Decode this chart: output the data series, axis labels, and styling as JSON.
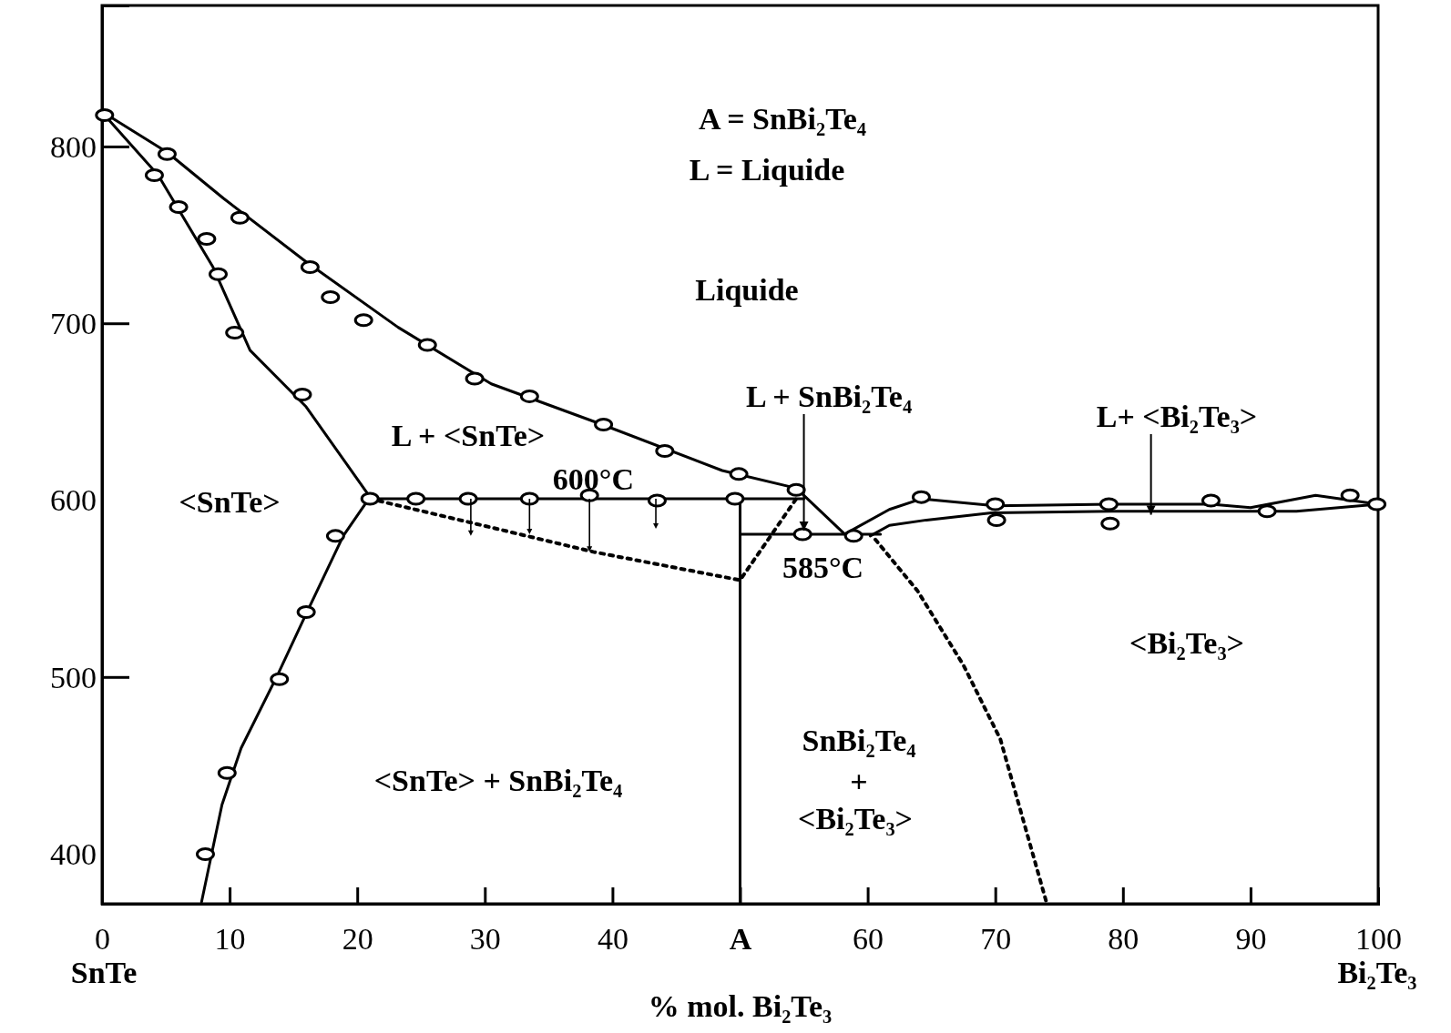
{
  "chart_data": {
    "type": "line",
    "xlabel": "% mol. Bi₂Te₃",
    "xlim": [
      0,
      100
    ],
    "ylim": [
      372,
      880
    ],
    "xticks": [
      0,
      10,
      20,
      30,
      40,
      {
        "value": 50,
        "label": "A"
      },
      60,
      70,
      80,
      90,
      100
    ],
    "yticks": [
      400,
      500,
      600,
      700,
      800
    ],
    "series": [
      {
        "color": "#000000",
        "line_style": "solid",
        "x": [
          0.2,
          5.1,
          9.5,
          16.0,
          23.2,
          30.5,
          39.2,
          48.6,
          54.4,
          58.2,
          61.7,
          64.2,
          70.0,
          79.1,
          86.9,
          90.0,
          95.1,
          100
        ],
        "values": [
          819,
          797,
          771,
          735,
          698,
          666,
          643,
          617,
          607,
          581,
          595,
          601,
          597,
          598,
          598,
          596,
          603,
          598
        ]
      },
      {
        "color": "#000000",
        "line_style": "solid",
        "x": [
          0.2,
          4.4,
          8.7,
          11.6,
          16.0,
          21.0
        ],
        "values": [
          818,
          784,
          732,
          685,
          653,
          602
        ]
      },
      {
        "color": "#000000",
        "line_style": "solid",
        "x": [
          21.0,
          18.9,
          16.0,
          13.8,
          10.9,
          9.4,
          7.8
        ],
        "values": [
          602,
          580,
          536,
          502,
          460,
          428,
          373
        ]
      },
      {
        "color": "#000000",
        "line_style": "solid",
        "x": [
          21.0,
          55.0
        ],
        "values": [
          601,
          601
        ]
      },
      {
        "color": "#000000",
        "line_style": "solid",
        "x": [
          50,
          50
        ],
        "values": [
          600,
          372
        ]
      },
      {
        "color": "#000000",
        "line_style": "solid",
        "x": [
          50,
          61
        ],
        "values": [
          581,
          581
        ]
      },
      {
        "color": "#000000",
        "line_style": "solid",
        "x": [
          60.2,
          61.7,
          64.6,
          69.7,
          79.1,
          93.6,
          100
        ],
        "values": [
          580,
          586,
          589,
          593,
          594,
          594,
          598
        ]
      },
      {
        "color": "#000000",
        "line_style": "dotted",
        "x": [
          21.0,
          29.8,
          38.5,
          50,
          54.4
        ],
        "values": [
          601,
          586,
          571,
          555,
          601
        ]
      },
      {
        "color": "#000000",
        "line_style": "dotted",
        "x": [
          60.6,
          63.9,
          67.5,
          70.4,
          74.0
        ],
        "values": [
          578,
          549,
          507,
          465,
          373
        ]
      },
      {
        "type": "scatter",
        "color": "#000000",
        "marker": "circle",
        "x": [
          0.2,
          4.1,
          5.1,
          6.0,
          8.2,
          9.1,
          10.8,
          10.4,
          16.3,
          17.9,
          15.7,
          20.5,
          21.0,
          24.6,
          25.5,
          28.7,
          29.2,
          33.5,
          33.5,
          38.2,
          39.3,
          43.5,
          44.1,
          49.6,
          49.9,
          54.4,
          54.9,
          18.3,
          16.0,
          13.9,
          9.8,
          8.1,
          58.9,
          64.2,
          70.0,
          70.1,
          78.9,
          79.0,
          86.9,
          91.3,
          97.8,
          99.9
        ],
        "values": [
          818,
          784,
          796,
          766,
          748,
          728,
          760,
          695,
          732,
          715,
          660,
          702,
          601,
          601,
          688,
          601,
          669,
          659,
          601,
          603,
          643,
          600,
          628,
          601,
          615,
          606,
          581,
          580,
          537,
          499,
          446,
          400,
          580,
          602,
          598,
          589,
          598,
          587,
          600,
          594,
          603,
          598
        ]
      }
    ],
    "annotations": [
      "A = SnBi₂Te₄",
      "L = Liquide",
      "Liquide",
      {
        "text": "L + SnBi₂Te₄",
        "x": 55,
        "y": 583
      },
      {
        "text": "L+ <Bi₂Te₃>",
        "x": 82.2,
        "y": 592
      },
      "L + <SnTe>",
      {
        "text": "600°C",
        "x": 38.5,
        "y": 601
      },
      "<SnTe>",
      {
        "text": "585°C",
        "x": 56.5,
        "y": 581
      },
      "<Bi₂Te₃>",
      "SnBi₂Te₄",
      "+",
      "<Bi₂Te₃>",
      "<SnTe> + SnBi₂Te₄",
      "SnTe",
      "Bi₂Te₃"
    ]
  }
}
